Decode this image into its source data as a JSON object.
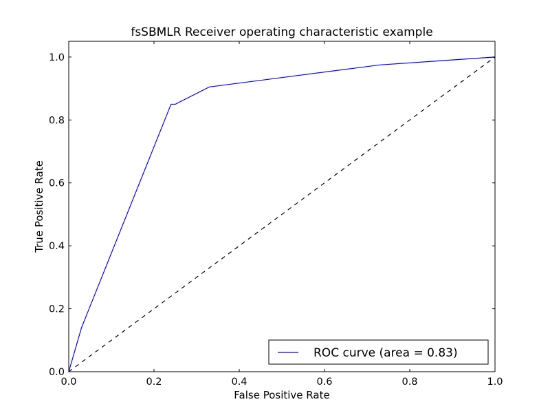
{
  "chart_data": {
    "type": "line",
    "title": "fsSBMLR Receiver operating characteristic example",
    "xlabel": "False Positive Rate",
    "ylabel": "True Positive Rate",
    "xlim": [
      0.0,
      1.0
    ],
    "ylim": [
      0.0,
      1.05
    ],
    "xticks": [
      0.0,
      0.2,
      0.4,
      0.6,
      0.8,
      1.0
    ],
    "yticks": [
      0.0,
      0.2,
      0.4,
      0.6,
      0.8,
      1.0
    ],
    "xtick_labels": [
      "0.0",
      "0.2",
      "0.4",
      "0.6",
      "0.8",
      "1.0"
    ],
    "ytick_labels": [
      "0.0",
      "0.2",
      "0.4",
      "0.6",
      "0.8",
      "1.0"
    ],
    "grid": false,
    "legend_position": "lower-right",
    "series": [
      {
        "name": "ROC curve (area = 0.83)",
        "color": "#0000ff",
        "style": "solid",
        "x": [
          0.0,
          0.03,
          0.24,
          0.25,
          0.33,
          0.73,
          1.0
        ],
        "y": [
          0.0,
          0.14,
          0.85,
          0.85,
          0.905,
          0.975,
          1.0
        ]
      },
      {
        "name": "",
        "color": "#000000",
        "style": "dashed",
        "x": [
          0.0,
          1.0
        ],
        "y": [
          0.0,
          1.0
        ]
      }
    ]
  }
}
